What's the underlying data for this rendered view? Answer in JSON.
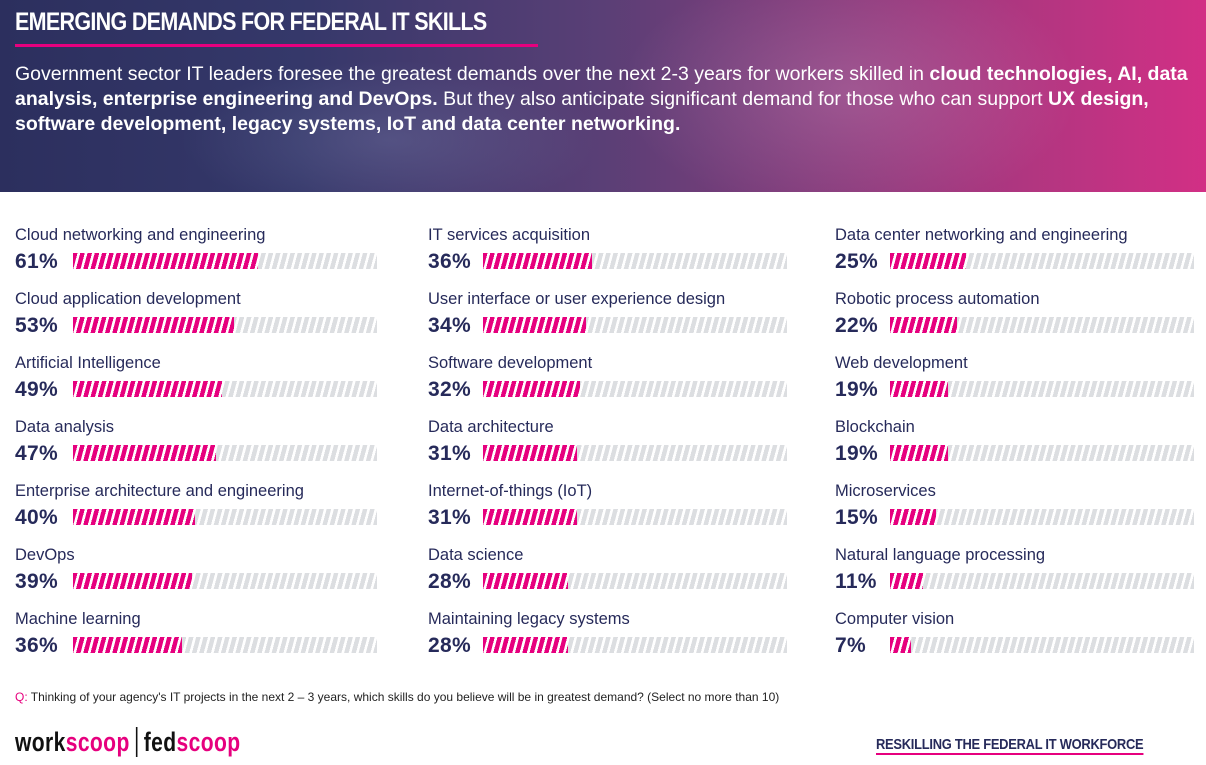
{
  "header": {
    "title": "EMERGING DEMANDS FOR FEDERAL IT SKILLS",
    "intro": [
      {
        "text": "Government sector IT leaders foresee the greatest demands over the next 2-3 years for workers skilled in ",
        "bold": false
      },
      {
        "text": "cloud technologies, AI, data analysis, enterprise engineering and DevOps.",
        "bold": true
      },
      {
        "text": " But they also anticipate significant demand for those who can support ",
        "bold": false
      },
      {
        "text": "UX design, software development, legacy systems, IoT and data center networking.",
        "bold": true
      }
    ]
  },
  "colors": {
    "accent": "#e6007e",
    "text": "#262a5a",
    "bar_background": "#dcdee1"
  },
  "chart_data": {
    "type": "bar",
    "orientation": "horizontal",
    "title": "EMERGING DEMANDS FOR FEDERAL IT SKILLS",
    "xlabel": "",
    "ylabel": "",
    "xlim": [
      0,
      100
    ],
    "unit": "%",
    "columns": [
      [
        {
          "label": "Cloud networking and engineering",
          "value": 61
        },
        {
          "label": "Cloud application development",
          "value": 53
        },
        {
          "label": "Artificial Intelligence",
          "value": 49
        },
        {
          "label": "Data analysis",
          "value": 47
        },
        {
          "label": "Enterprise architecture and engineering",
          "value": 40
        },
        {
          "label": "DevOps",
          "value": 39
        },
        {
          "label": "Machine learning",
          "value": 36
        }
      ],
      [
        {
          "label": "IT services acquisition",
          "value": 36
        },
        {
          "label": "User interface or user experience design",
          "value": 34
        },
        {
          "label": "Software development",
          "value": 32
        },
        {
          "label": "Data architecture",
          "value": 31
        },
        {
          "label": "Internet-of-things (IoT)",
          "value": 31
        },
        {
          "label": "Data science",
          "value": 28
        },
        {
          "label": "Maintaining legacy systems",
          "value": 28
        }
      ],
      [
        {
          "label": "Data center networking and engineering",
          "value": 25
        },
        {
          "label": "Robotic process automation",
          "value": 22
        },
        {
          "label": "Web development",
          "value": 19
        },
        {
          "label": "Blockchain",
          "value": 19
        },
        {
          "label": "Microservices",
          "value": 15
        },
        {
          "label": "Natural language processing",
          "value": 11
        },
        {
          "label": "Computer vision",
          "value": 7
        }
      ]
    ]
  },
  "footer": {
    "question_prefix": "Q:",
    "question": " Thinking of your agency's IT projects in the next 2 – 3 years, which skills do you believe will be in greatest demand?  (Select no more than 10)",
    "logo": {
      "part1_dark": "work",
      "part1_pink": "scoop",
      "part2_dark": "fed",
      "part2_pink": "scoop"
    },
    "link": "RESKILLING THE FEDERAL IT WORKFORCE"
  }
}
